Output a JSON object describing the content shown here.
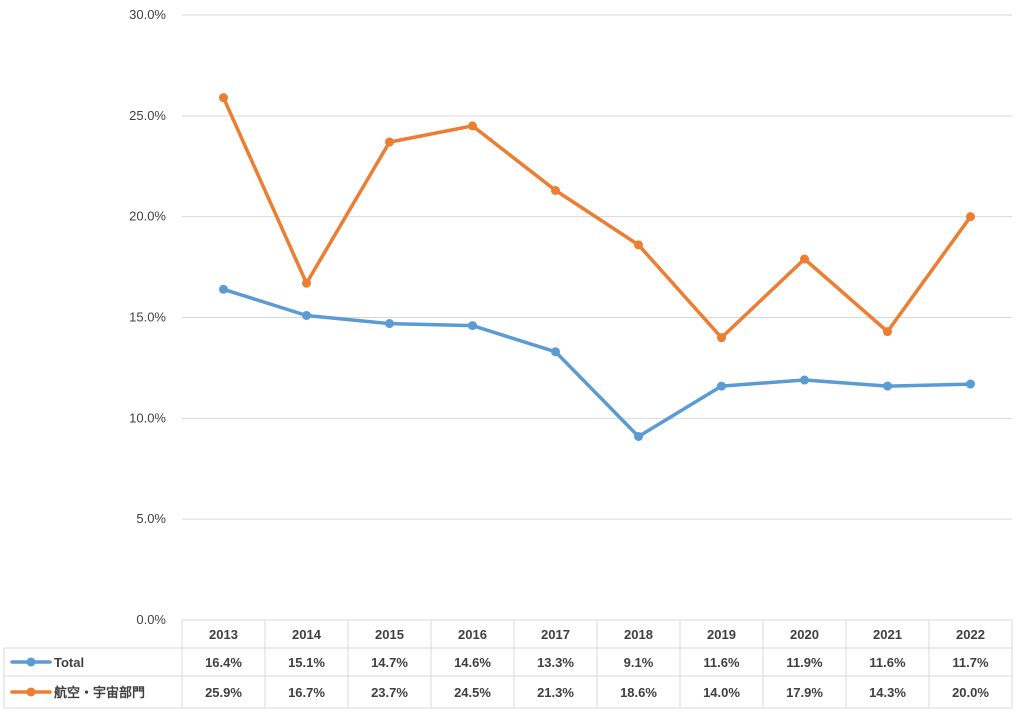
{
  "chart_data": {
    "type": "line",
    "title": "",
    "xlabel": "",
    "ylabel": "",
    "ylim": [
      0,
      30
    ],
    "y_ticks": [
      "0.0%",
      "5.0%",
      "10.0%",
      "15.0%",
      "20.0%",
      "25.0%",
      "30.0%"
    ],
    "grid": "horizontal",
    "legend": "data-table",
    "categories": [
      "2013",
      "2014",
      "2015",
      "2016",
      "2017",
      "2018",
      "2019",
      "2020",
      "2021",
      "2022"
    ],
    "series": [
      {
        "name": "Total",
        "color": "#5B9BD5",
        "values": [
          16.4,
          15.1,
          14.7,
          14.6,
          13.3,
          9.1,
          11.6,
          11.9,
          11.6,
          11.7
        ],
        "labels": [
          "16.4%",
          "15.1%",
          "14.7%",
          "14.6%",
          "13.3%",
          "9.1%",
          "11.6%",
          "11.9%",
          "11.6%",
          "11.7%"
        ]
      },
      {
        "name": "航空・宇宙部門",
        "color": "#ED7D31",
        "values": [
          25.9,
          16.7,
          23.7,
          24.5,
          21.3,
          18.6,
          14.0,
          17.9,
          14.3,
          20.0
        ],
        "labels": [
          "25.9%",
          "16.7%",
          "23.7%",
          "24.5%",
          "21.3%",
          "18.6%",
          "14.0%",
          "17.9%",
          "14.3%",
          "20.0%"
        ]
      }
    ]
  }
}
